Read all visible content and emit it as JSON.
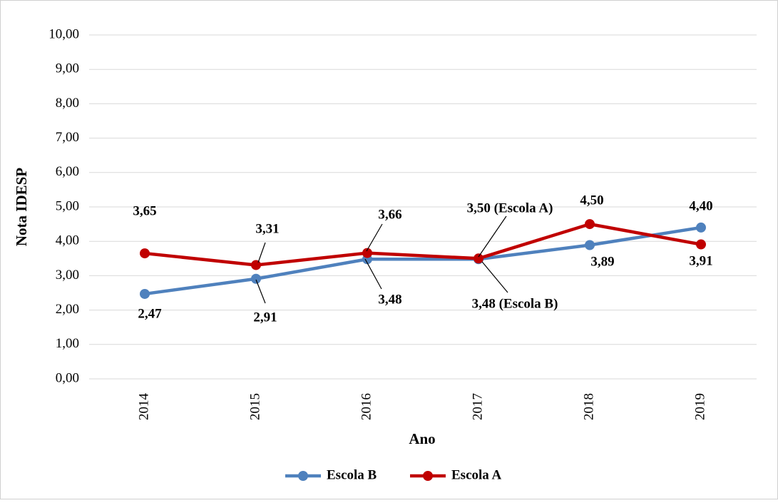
{
  "chart_data": {
    "type": "line",
    "x_label": "Ano",
    "y_label": "Nota IDESP",
    "categories": [
      "2014",
      "2015",
      "2016",
      "2017",
      "2018",
      "2019"
    ],
    "series": [
      {
        "name": "Escola B",
        "color": "#4f81bd",
        "values": [
          2.47,
          2.91,
          3.48,
          3.48,
          3.89,
          4.4
        ],
        "value_labels": [
          "2,47",
          "2,91",
          "3,48",
          "3,48 (Escola B)",
          "3,89",
          "4,40"
        ]
      },
      {
        "name": "Escola A",
        "color": "#c00000",
        "values": [
          3.65,
          3.31,
          3.66,
          3.5,
          4.5,
          3.91
        ],
        "value_labels": [
          "3,65",
          "3,31",
          "3,66",
          "3,50 (Escola A)",
          "4,50",
          "3,91"
        ]
      }
    ],
    "ylim": [
      0,
      10
    ],
    "yticks": [
      {
        "value": 0,
        "label": "0,00"
      },
      {
        "value": 1,
        "label": "1,00"
      },
      {
        "value": 2,
        "label": "2,00"
      },
      {
        "value": 3,
        "label": "3,00"
      },
      {
        "value": 4,
        "label": "4,00"
      },
      {
        "value": 5,
        "label": "5,00"
      },
      {
        "value": 6,
        "label": "6,00"
      },
      {
        "value": 7,
        "label": "7,00"
      },
      {
        "value": 8,
        "label": "8,00"
      },
      {
        "value": 9,
        "label": "9,00"
      },
      {
        "value": 10,
        "label": "10,00"
      }
    ],
    "grid": true,
    "legend": "bottom"
  }
}
